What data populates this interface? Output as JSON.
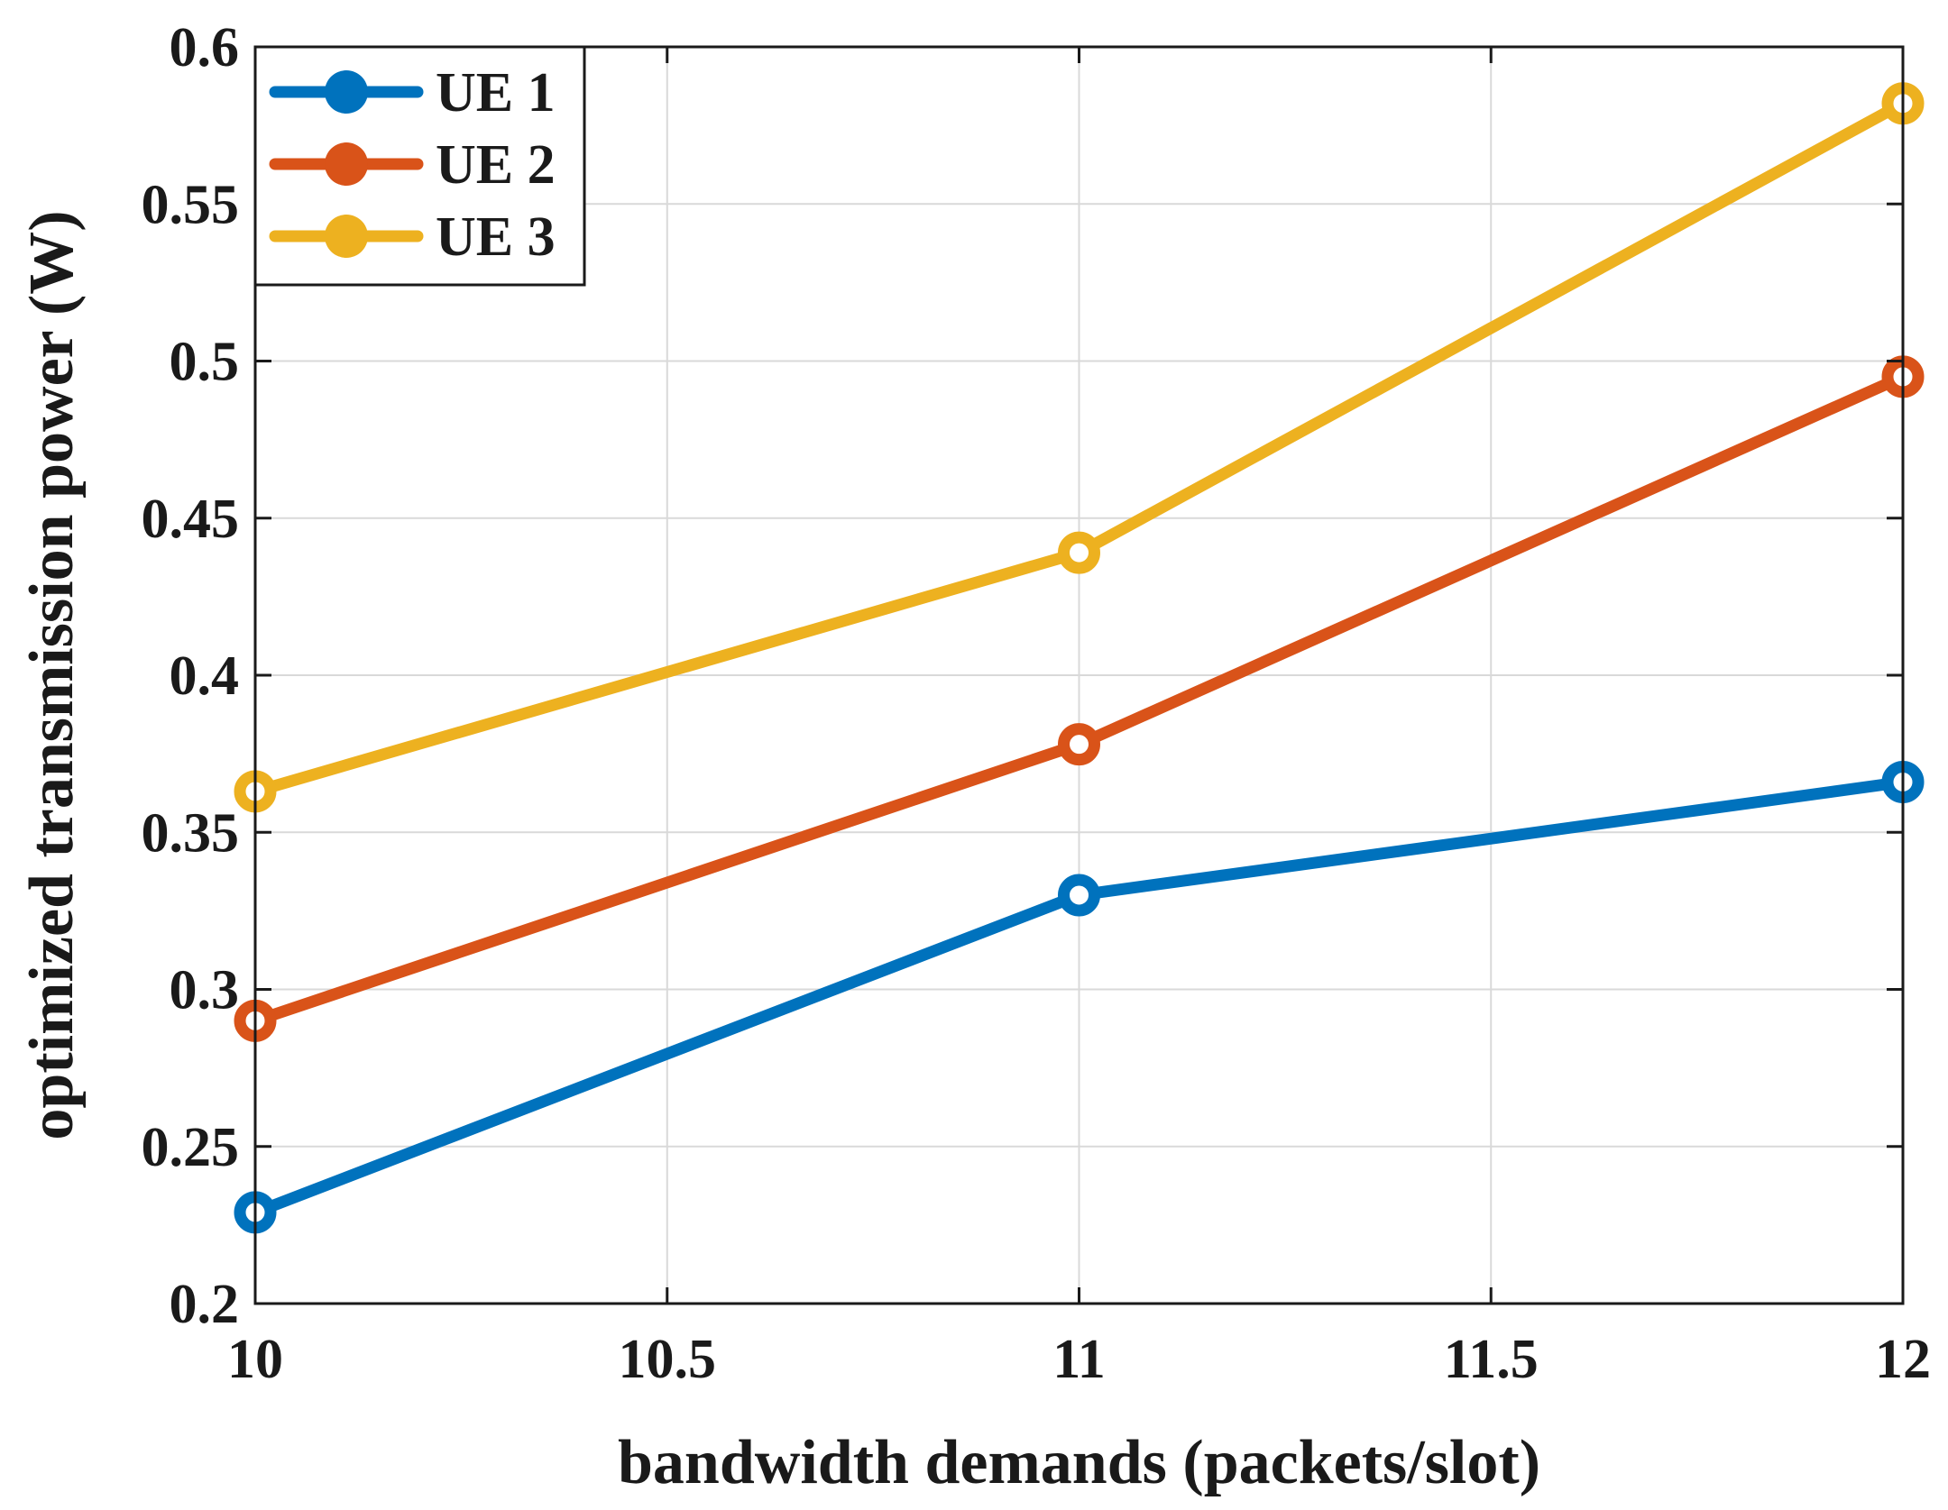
{
  "chart_data": {
    "type": "line",
    "title": "",
    "xlabel": "bandwidth demands (packets/slot)",
    "ylabel": "optimized transmission power (W)",
    "xlim": [
      10,
      12
    ],
    "ylim": [
      0.2,
      0.6
    ],
    "xticks": [
      10,
      10.5,
      11,
      11.5,
      12
    ],
    "xtick_labels": [
      "10",
      "10.5",
      "11",
      "11.5",
      "12"
    ],
    "yticks": [
      0.2,
      0.25,
      0.3,
      0.35,
      0.4,
      0.45,
      0.5,
      0.55,
      0.6
    ],
    "ytick_labels": [
      "0.2",
      "0.25",
      "0.3",
      "0.35",
      "0.4",
      "0.45",
      "0.5",
      "0.55",
      "0.6"
    ],
    "grid": true,
    "legend_position": "top-left",
    "x": [
      10,
      11,
      12
    ],
    "series": [
      {
        "name": "UE 1",
        "color": "#0072BD",
        "values": [
          0.229,
          0.33,
          0.366
        ]
      },
      {
        "name": "UE 2",
        "color": "#D95319",
        "values": [
          0.29,
          0.378,
          0.495
        ]
      },
      {
        "name": "UE 3",
        "color": "#EDB120",
        "values": [
          0.363,
          0.439,
          0.582
        ]
      }
    ]
  }
}
